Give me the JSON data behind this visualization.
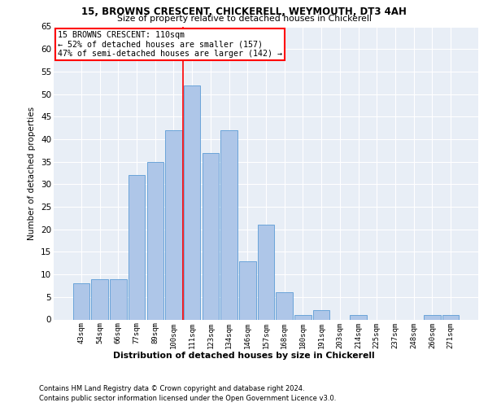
{
  "title1": "15, BROWNS CRESCENT, CHICKERELL, WEYMOUTH, DT3 4AH",
  "title2": "Size of property relative to detached houses in Chickerell",
  "xlabel": "Distribution of detached houses by size in Chickerell",
  "ylabel": "Number of detached properties",
  "categories": [
    "43sqm",
    "54sqm",
    "66sqm",
    "77sqm",
    "89sqm",
    "100sqm",
    "111sqm",
    "123sqm",
    "134sqm",
    "146sqm",
    "157sqm",
    "168sqm",
    "180sqm",
    "191sqm",
    "203sqm",
    "214sqm",
    "225sqm",
    "237sqm",
    "248sqm",
    "260sqm",
    "271sqm"
  ],
  "values": [
    8,
    9,
    9,
    32,
    35,
    42,
    52,
    37,
    42,
    13,
    21,
    6,
    1,
    2,
    0,
    1,
    0,
    0,
    0,
    1,
    1
  ],
  "bar_color": "#aec6e8",
  "bar_edge_color": "#5b9bd5",
  "vline_index": 6,
  "annotation_text": "15 BROWNS CRESCENT: 110sqm\n← 52% of detached houses are smaller (157)\n47% of semi-detached houses are larger (142) →",
  "annotation_box_color": "white",
  "annotation_box_edge": "red",
  "vline_color": "red",
  "ylim": [
    0,
    65
  ],
  "yticks": [
    0,
    5,
    10,
    15,
    20,
    25,
    30,
    35,
    40,
    45,
    50,
    55,
    60,
    65
  ],
  "background_color": "#e8eef6",
  "grid_color": "white",
  "footer1": "Contains HM Land Registry data © Crown copyright and database right 2024.",
  "footer2": "Contains public sector information licensed under the Open Government Licence v3.0."
}
